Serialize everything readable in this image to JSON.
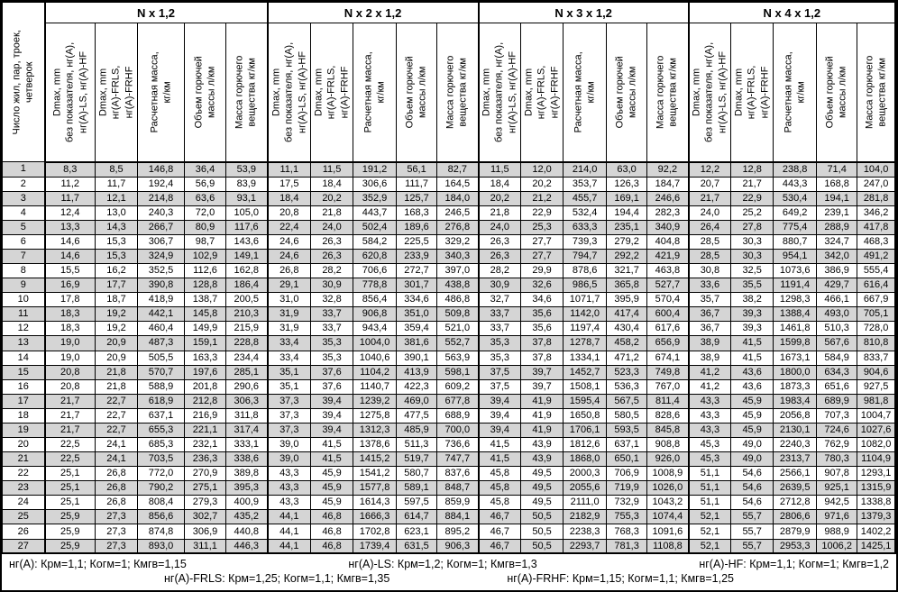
{
  "table": {
    "corner_header": "Число жил, пар, троек,\nчетверок",
    "groups": [
      {
        "label": "N x 1,2"
      },
      {
        "label": "N x 2 x 1,2"
      },
      {
        "label": "N x 3 x 1,2"
      },
      {
        "label": "N x 4 x 1,2"
      }
    ],
    "sub_headers": [
      "Dmax, mm\nбез показателя, нг(А),\nнг(А)-LS, нг(А)-HF",
      "Dmax, mm\nнг(А)-FRLS,\nнг(А)-FRHF",
      "Расчетная масса,\nкг/км",
      "Объем горючей\nмассы л/км",
      "Масса горючего\nвещества кг/км"
    ],
    "stripe_color": "#d5d5d5",
    "border_color": "#000000",
    "rows": [
      {
        "n": "1",
        "values": [
          "8,3",
          "8,5",
          "146,8",
          "36,4",
          "53,9",
          "11,1",
          "11,5",
          "191,2",
          "56,1",
          "82,7",
          "11,5",
          "12,0",
          "214,0",
          "63,0",
          "92,2",
          "12,2",
          "12,8",
          "238,8",
          "71,4",
          "104,0"
        ]
      },
      {
        "n": "2",
        "values": [
          "11,2",
          "11,7",
          "192,4",
          "56,9",
          "83,9",
          "17,5",
          "18,4",
          "306,6",
          "111,7",
          "164,5",
          "18,4",
          "20,2",
          "353,7",
          "126,3",
          "184,7",
          "20,7",
          "21,7",
          "443,3",
          "168,8",
          "247,0"
        ]
      },
      {
        "n": "3",
        "values": [
          "11,7",
          "12,1",
          "214,8",
          "63,6",
          "93,1",
          "18,4",
          "20,2",
          "352,9",
          "125,7",
          "184,0",
          "20,2",
          "21,2",
          "455,7",
          "169,1",
          "246,6",
          "21,7",
          "22,9",
          "530,4",
          "194,1",
          "281,8"
        ]
      },
      {
        "n": "4",
        "values": [
          "12,4",
          "13,0",
          "240,3",
          "72,0",
          "105,0",
          "20,8",
          "21,8",
          "443,7",
          "168,3",
          "246,5",
          "21,8",
          "22,9",
          "532,4",
          "194,4",
          "282,3",
          "24,0",
          "25,2",
          "649,2",
          "239,1",
          "346,2"
        ]
      },
      {
        "n": "5",
        "values": [
          "13,3",
          "14,3",
          "266,7",
          "80,9",
          "117,6",
          "22,4",
          "24,0",
          "502,4",
          "189,6",
          "276,8",
          "24,0",
          "25,3",
          "633,3",
          "235,1",
          "340,9",
          "26,4",
          "27,8",
          "775,4",
          "288,9",
          "417,8"
        ]
      },
      {
        "n": "6",
        "values": [
          "14,6",
          "15,3",
          "306,7",
          "98,7",
          "143,6",
          "24,6",
          "26,3",
          "584,2",
          "225,5",
          "329,2",
          "26,3",
          "27,7",
          "739,3",
          "279,2",
          "404,8",
          "28,5",
          "30,3",
          "880,7",
          "324,7",
          "468,3"
        ]
      },
      {
        "n": "7",
        "values": [
          "14,6",
          "15,3",
          "324,9",
          "102,9",
          "149,1",
          "24,6",
          "26,3",
          "620,8",
          "233,9",
          "340,3",
          "26,3",
          "27,7",
          "794,7",
          "292,2",
          "421,9",
          "28,5",
          "30,3",
          "954,1",
          "342,0",
          "491,2"
        ]
      },
      {
        "n": "8",
        "values": [
          "15,5",
          "16,2",
          "352,5",
          "112,6",
          "162,8",
          "26,8",
          "28,2",
          "706,6",
          "272,7",
          "397,0",
          "28,2",
          "29,9",
          "878,6",
          "321,7",
          "463,8",
          "30,8",
          "32,5",
          "1073,6",
          "386,9",
          "555,4"
        ]
      },
      {
        "n": "9",
        "values": [
          "16,9",
          "17,7",
          "390,8",
          "128,8",
          "186,4",
          "29,1",
          "30,9",
          "778,8",
          "301,7",
          "438,8",
          "30,9",
          "32,6",
          "986,5",
          "365,8",
          "527,7",
          "33,6",
          "35,5",
          "1191,4",
          "429,7",
          "616,4"
        ]
      },
      {
        "n": "10",
        "values": [
          "17,8",
          "18,7",
          "418,9",
          "138,7",
          "200,5",
          "31,0",
          "32,8",
          "856,4",
          "334,6",
          "486,8",
          "32,7",
          "34,6",
          "1071,7",
          "395,9",
          "570,4",
          "35,7",
          "38,2",
          "1298,3",
          "466,1",
          "667,9"
        ]
      },
      {
        "n": "11",
        "values": [
          "18,3",
          "19,2",
          "442,1",
          "145,8",
          "210,3",
          "31,9",
          "33,7",
          "906,8",
          "351,0",
          "509,8",
          "33,7",
          "35,6",
          "1142,0",
          "417,4",
          "600,4",
          "36,7",
          "39,3",
          "1388,4",
          "493,0",
          "705,1"
        ]
      },
      {
        "n": "12",
        "values": [
          "18,3",
          "19,2",
          "460,4",
          "149,9",
          "215,9",
          "31,9",
          "33,7",
          "943,4",
          "359,4",
          "521,0",
          "33,7",
          "35,6",
          "1197,4",
          "430,4",
          "617,6",
          "36,7",
          "39,3",
          "1461,8",
          "510,3",
          "728,0"
        ]
      },
      {
        "n": "13",
        "values": [
          "19,0",
          "20,9",
          "487,3",
          "159,1",
          "228,8",
          "33,4",
          "35,3",
          "1004,0",
          "381,6",
          "552,7",
          "35,3",
          "37,8",
          "1278,7",
          "458,2",
          "656,9",
          "38,9",
          "41,5",
          "1599,8",
          "567,6",
          "810,8"
        ]
      },
      {
        "n": "14",
        "values": [
          "19,0",
          "20,9",
          "505,5",
          "163,3",
          "234,4",
          "33,4",
          "35,3",
          "1040,6",
          "390,1",
          "563,9",
          "35,3",
          "37,8",
          "1334,1",
          "471,2",
          "674,1",
          "38,9",
          "41,5",
          "1673,1",
          "584,9",
          "833,7"
        ]
      },
      {
        "n": "15",
        "values": [
          "20,8",
          "21,8",
          "570,7",
          "197,6",
          "285,1",
          "35,1",
          "37,6",
          "1104,2",
          "413,9",
          "598,1",
          "37,5",
          "39,7",
          "1452,7",
          "523,3",
          "749,8",
          "41,2",
          "43,6",
          "1800,0",
          "634,3",
          "904,6"
        ]
      },
      {
        "n": "16",
        "values": [
          "20,8",
          "21,8",
          "588,9",
          "201,8",
          "290,6",
          "35,1",
          "37,6",
          "1140,7",
          "422,3",
          "609,2",
          "37,5",
          "39,7",
          "1508,1",
          "536,3",
          "767,0",
          "41,2",
          "43,6",
          "1873,3",
          "651,6",
          "927,5"
        ]
      },
      {
        "n": "17",
        "values": [
          "21,7",
          "22,7",
          "618,9",
          "212,8",
          "306,3",
          "37,3",
          "39,4",
          "1239,2",
          "469,0",
          "677,8",
          "39,4",
          "41,9",
          "1595,4",
          "567,5",
          "811,4",
          "43,3",
          "45,9",
          "1983,4",
          "689,9",
          "981,8"
        ]
      },
      {
        "n": "18",
        "values": [
          "21,7",
          "22,7",
          "637,1",
          "216,9",
          "311,8",
          "37,3",
          "39,4",
          "1275,8",
          "477,5",
          "688,9",
          "39,4",
          "41,9",
          "1650,8",
          "580,5",
          "828,6",
          "43,3",
          "45,9",
          "2056,8",
          "707,3",
          "1004,7"
        ]
      },
      {
        "n": "19",
        "values": [
          "21,7",
          "22,7",
          "655,3",
          "221,1",
          "317,4",
          "37,3",
          "39,4",
          "1312,3",
          "485,9",
          "700,0",
          "39,4",
          "41,9",
          "1706,1",
          "593,5",
          "845,8",
          "43,3",
          "45,9",
          "2130,1",
          "724,6",
          "1027,6"
        ]
      },
      {
        "n": "20",
        "values": [
          "22,5",
          "24,1",
          "685,3",
          "232,1",
          "333,1",
          "39,0",
          "41,5",
          "1378,6",
          "511,3",
          "736,6",
          "41,5",
          "43,9",
          "1812,6",
          "637,1",
          "908,8",
          "45,3",
          "49,0",
          "2240,3",
          "762,9",
          "1082,0"
        ]
      },
      {
        "n": "21",
        "values": [
          "22,5",
          "24,1",
          "703,5",
          "236,3",
          "338,6",
          "39,0",
          "41,5",
          "1415,2",
          "519,7",
          "747,7",
          "41,5",
          "43,9",
          "1868,0",
          "650,1",
          "926,0",
          "45,3",
          "49,0",
          "2313,7",
          "780,3",
          "1104,9"
        ]
      },
      {
        "n": "22",
        "values": [
          "25,1",
          "26,8",
          "772,0",
          "270,9",
          "389,8",
          "43,3",
          "45,9",
          "1541,2",
          "580,7",
          "837,6",
          "45,8",
          "49,5",
          "2000,3",
          "706,9",
          "1008,9",
          "51,1",
          "54,6",
          "2566,1",
          "907,8",
          "1293,1"
        ]
      },
      {
        "n": "23",
        "values": [
          "25,1",
          "26,8",
          "790,2",
          "275,1",
          "395,3",
          "43,3",
          "45,9",
          "1577,8",
          "589,1",
          "848,7",
          "45,8",
          "49,5",
          "2055,6",
          "719,9",
          "1026,0",
          "51,1",
          "54,6",
          "2639,5",
          "925,1",
          "1315,9"
        ]
      },
      {
        "n": "24",
        "values": [
          "25,1",
          "26,8",
          "808,4",
          "279,3",
          "400,9",
          "43,3",
          "45,9",
          "1614,3",
          "597,5",
          "859,9",
          "45,8",
          "49,5",
          "2111,0",
          "732,9",
          "1043,2",
          "51,1",
          "54,6",
          "2712,8",
          "942,5",
          "1338,8"
        ]
      },
      {
        "n": "25",
        "values": [
          "25,9",
          "27,3",
          "856,6",
          "302,7",
          "435,2",
          "44,1",
          "46,8",
          "1666,3",
          "614,7",
          "884,1",
          "46,7",
          "50,5",
          "2182,9",
          "755,3",
          "1074,4",
          "52,1",
          "55,7",
          "2806,6",
          "971,6",
          "1379,3"
        ]
      },
      {
        "n": "26",
        "values": [
          "25,9",
          "27,3",
          "874,8",
          "306,9",
          "440,8",
          "44,1",
          "46,8",
          "1702,8",
          "623,1",
          "895,2",
          "46,7",
          "50,5",
          "2238,3",
          "768,3",
          "1091,6",
          "52,1",
          "55,7",
          "2879,9",
          "988,9",
          "1402,2"
        ]
      },
      {
        "n": "27",
        "values": [
          "25,9",
          "27,3",
          "893,0",
          "311,1",
          "446,3",
          "44,1",
          "46,8",
          "1739,4",
          "631,5",
          "906,3",
          "46,7",
          "50,5",
          "2293,7",
          "781,3",
          "1108,8",
          "52,1",
          "55,7",
          "2953,3",
          "1006,2",
          "1425,1"
        ]
      }
    ]
  },
  "footnotes": {
    "line1": [
      "нг(А): Крм=1,1;  Когм=1;  Кмгв=1,15",
      "нг(А)-LS: Крм=1,2;  Когм=1;  Кмгв=1,3",
      "нг(А)-HF: Крм=1,1;  Когм=1;  Кмгв=1,2"
    ],
    "line2": [
      "нг(А)-FRLS: Крм=1,25;  Когм=1,1;  Кмгв=1,35",
      "нг(А)-FRHF: Крм=1,15;  Когм=1,1;  Кмгв=1,25"
    ]
  }
}
